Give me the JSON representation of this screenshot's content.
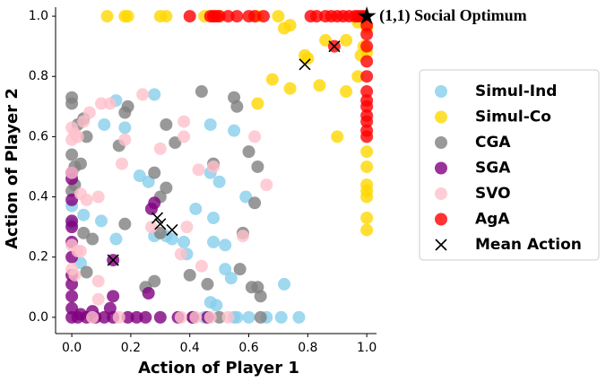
{
  "chart_data": {
    "type": "scatter",
    "xlabel": "Action of Player 1",
    "ylabel": "Action of Player 2",
    "xlim": [
      -0.055,
      1.033
    ],
    "ylim": [
      -0.054,
      1.03
    ],
    "xticks": [
      {
        "value": 0,
        "label": "0.0"
      },
      0.2,
      0.4,
      0.6,
      0.8,
      {
        "value": 1,
        "label": "1.0"
      }
    ],
    "yticks": [
      {
        "value": 0,
        "label": "0.0"
      },
      0.2,
      0.4,
      0.6,
      0.8,
      {
        "value": 1,
        "label": "1.0"
      }
    ],
    "legend": "right",
    "annotation": {
      "text": "(1,1) Social Optimum",
      "x": 1,
      "y": 1,
      "color": "#000000"
    },
    "series": [
      {
        "name": "Simul-Ind",
        "color": "#87ceeb",
        "marker": "circle",
        "x": [
          0.0,
          0.0,
          0.04,
          0.03,
          0.1,
          0.11,
          0.15,
          0.18,
          0.23,
          0.26,
          0.28,
          0.32,
          0.34,
          0.38,
          0.39,
          0.42,
          0.47,
          0.47,
          0.48,
          0.5,
          0.52,
          0.52,
          0.55,
          0.59,
          0.48,
          0.54,
          0.56,
          0.6,
          0.66,
          0.71,
          0.77,
          0.72,
          0.49,
          0.55,
          0.45,
          0.47,
          0.28,
          0.15
        ],
        "y": [
          0.37,
          0.31,
          0.34,
          0.18,
          0.32,
          0.64,
          0.72,
          0.63,
          0.47,
          0.45,
          0.27,
          0.27,
          0.26,
          0.25,
          0.21,
          0.36,
          0.64,
          0.48,
          0.33,
          0.45,
          0.24,
          0.16,
          0.62,
          0.4,
          0.25,
          0.13,
          0.0,
          0.0,
          0.0,
          0.0,
          0.0,
          0.11,
          0.04,
          0.0,
          0.0,
          0.05,
          0.74,
          0.26
        ]
      },
      {
        "name": "Simul-Co",
        "color": "#ffd700",
        "marker": "circle",
        "x": [
          0.12,
          0.18,
          0.19,
          0.3,
          0.32,
          0.45,
          0.48,
          0.5,
          0.63,
          0.7,
          0.72,
          0.74,
          0.97,
          1.0,
          0.99,
          1.0,
          0.98,
          0.8,
          0.79,
          0.97,
          0.93,
          0.84,
          0.74,
          0.68,
          0.63,
          0.9,
          1.0,
          1.0,
          1.0,
          1.0,
          1.0,
          1.0,
          1.0,
          0.86,
          0.93
        ],
        "y": [
          1.0,
          1.0,
          1.0,
          1.0,
          1.0,
          1.0,
          1.0,
          1.0,
          1.0,
          1.0,
          0.96,
          0.97,
          0.98,
          0.96,
          0.9,
          0.88,
          0.87,
          0.86,
          0.87,
          0.8,
          0.75,
          0.77,
          0.76,
          0.79,
          0.71,
          0.6,
          0.55,
          0.5,
          0.44,
          0.42,
          0.4,
          0.33,
          0.29,
          0.92,
          0.92
        ]
      },
      {
        "name": "CGA",
        "color": "#808080",
        "marker": "circle",
        "x": [
          0.0,
          0.0,
          0.02,
          0.04,
          0.05,
          0.0,
          0.01,
          0.03,
          0.01,
          0.0,
          0.04,
          0.07,
          0.18,
          0.19,
          0.16,
          0.28,
          0.3,
          0.32,
          0.32,
          0.35,
          0.44,
          0.48,
          0.55,
          0.56,
          0.6,
          0.63,
          0.62,
          0.58,
          0.57,
          0.63,
          0.64,
          0.61,
          0.46,
          0.4,
          0.28,
          0.3,
          0.25,
          0.05,
          0.18,
          0.64,
          0.41,
          0.5
        ],
        "y": [
          0.73,
          0.71,
          0.64,
          0.66,
          0.6,
          0.54,
          0.5,
          0.51,
          0.44,
          0.42,
          0.28,
          0.26,
          0.68,
          0.7,
          0.57,
          0.48,
          0.4,
          0.43,
          0.64,
          0.58,
          0.75,
          0.51,
          0.73,
          0.7,
          0.55,
          0.5,
          0.38,
          0.28,
          0.16,
          0.1,
          0.07,
          0.1,
          0.11,
          0.14,
          0.12,
          0.28,
          0.1,
          0.15,
          0.31,
          0.0,
          0.0,
          0.0
        ]
      },
      {
        "name": "SGA",
        "color": "#800080",
        "marker": "circle",
        "x": [
          0.0,
          0.02,
          0.05,
          0.08,
          0.11,
          0.14,
          0.22,
          0.25,
          0.36,
          0.41,
          0.46,
          0.0,
          0.03,
          0.0,
          0.0,
          0.0,
          0.0,
          0.0,
          0.0,
          0.0,
          0.0,
          0.0,
          0.0,
          0.14,
          0.14,
          0.13,
          0.07,
          0.26,
          0.27,
          0.28,
          0.19,
          0.3
        ],
        "y": [
          0.0,
          0.0,
          0.0,
          0.0,
          0.0,
          0.0,
          0.0,
          0.0,
          0.0,
          0.0,
          0.0,
          0.03,
          0.01,
          0.11,
          0.07,
          0.14,
          0.2,
          0.25,
          0.3,
          0.32,
          0.39,
          0.48,
          0.46,
          0.19,
          0.07,
          0.03,
          0.02,
          0.08,
          0.36,
          0.38,
          0.0,
          0.0
        ]
      },
      {
        "name": "SVO",
        "color": "#ffc0cb",
        "marker": "circle",
        "x": [
          0.0,
          0.01,
          0.0,
          0.02,
          0.04,
          0.06,
          0.1,
          0.13,
          0.18,
          0.17,
          0.24,
          0.3,
          0.38,
          0.38,
          0.43,
          0.48,
          0.0,
          0.03,
          0.05,
          0.09,
          0.0,
          0.02,
          0.03,
          0.0,
          0.01,
          0.09,
          0.16,
          0.37,
          0.42,
          0.47,
          0.53,
          0.58,
          0.62,
          0.66,
          0.37,
          0.44,
          0.39,
          0.07,
          0.27,
          0.09
        ],
        "y": [
          0.63,
          0.61,
          0.59,
          0.6,
          0.65,
          0.68,
          0.71,
          0.71,
          0.59,
          0.51,
          0.74,
          0.56,
          0.6,
          0.65,
          0.49,
          0.5,
          0.48,
          0.41,
          0.39,
          0.4,
          0.24,
          0.22,
          0.22,
          0.16,
          0.14,
          0.06,
          0.0,
          0.0,
          0.0,
          0.0,
          0.0,
          0.27,
          0.6,
          0.44,
          0.21,
          0.17,
          0.3,
          0.0,
          0.3,
          0.12
        ]
      },
      {
        "name": "AgA",
        "color": "#ff0000",
        "marker": "circle",
        "x": [
          0.4,
          0.47,
          0.48,
          0.49,
          0.5,
          0.53,
          0.56,
          0.6,
          0.62,
          0.65,
          0.81,
          0.83,
          0.86,
          0.88,
          0.9,
          0.92,
          0.94,
          0.96,
          0.97,
          0.98,
          0.99,
          1.0,
          1.0,
          1.0,
          1.0,
          1.0,
          1.0,
          1.0,
          1.0,
          1.0,
          1.0,
          1.0,
          1.0,
          0.89
        ],
        "y": [
          1.0,
          1.0,
          1.0,
          1.0,
          1.0,
          1.0,
          1.0,
          1.0,
          1.0,
          1.0,
          1.0,
          1.0,
          1.0,
          1.0,
          1.0,
          1.0,
          1.0,
          1.0,
          1.0,
          1.0,
          1.0,
          0.97,
          0.94,
          0.9,
          0.85,
          0.8,
          0.75,
          0.72,
          0.7,
          0.67,
          0.65,
          0.62,
          0.6,
          0.9
        ]
      },
      {
        "name": "Mean Action",
        "color": "#000000",
        "marker": "x",
        "x": [
          0.34,
          0.79,
          0.29,
          0.14,
          0.3,
          0.89
        ],
        "y": [
          0.29,
          0.84,
          0.33,
          0.19,
          0.31,
          0.9
        ]
      }
    ]
  }
}
